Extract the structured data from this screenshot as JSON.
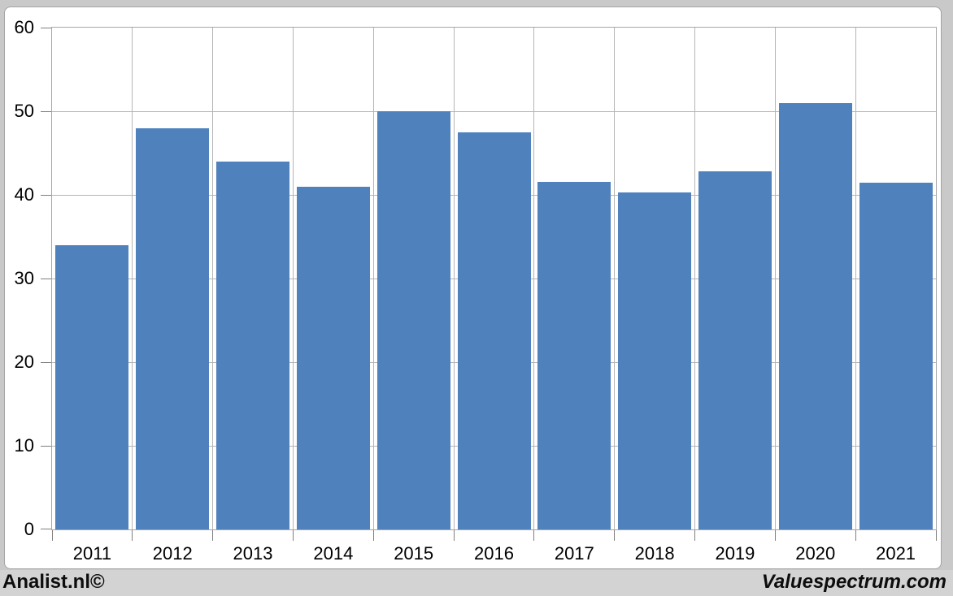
{
  "chart_data": {
    "type": "bar",
    "title": "",
    "categories": [
      "2011",
      "2012",
      "2013",
      "2014",
      "2015",
      "2016",
      "2017",
      "2018",
      "2019",
      "2020",
      "2021"
    ],
    "values": [
      34,
      48,
      44,
      41,
      50,
      47.5,
      41.6,
      40.3,
      42.8,
      51,
      41.5
    ],
    "xlabel": "",
    "ylabel": "",
    "ylim": [
      0,
      60
    ],
    "yticks": [
      0,
      10,
      20,
      30,
      40,
      50,
      60
    ],
    "grid": true,
    "legend_position": "none",
    "bar_color": "#4F81BD",
    "gridline_color": "#b5b5b5",
    "plot_border_color": "#a6a6a6"
  },
  "branding": {
    "left": "Analist.nl©",
    "right": "Valuespectrum.com"
  }
}
